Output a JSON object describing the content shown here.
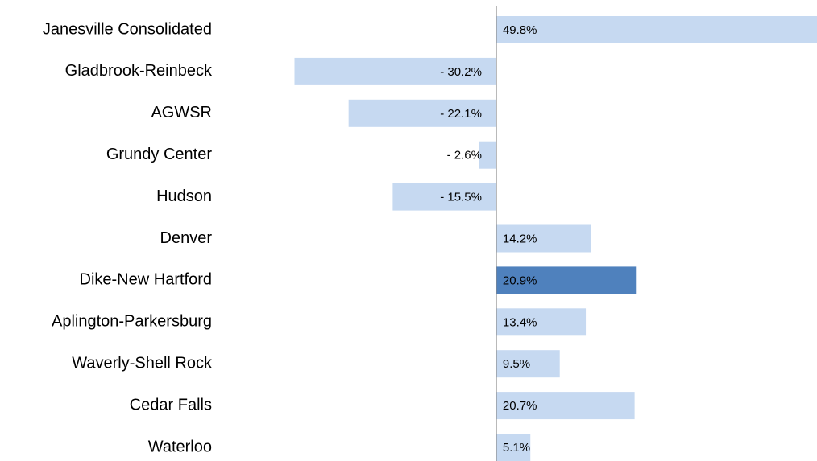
{
  "chart_data": {
    "type": "bar",
    "orientation": "horizontal",
    "categories": [
      "Janesville Consolidated",
      "Gladbrook-Reinbeck",
      "AGWSR",
      "Grundy Center",
      "Hudson",
      "Denver",
      "Dike-New Hartford",
      "Aplington-Parkersburg",
      "Waverly-Shell Rock",
      "Cedar Falls",
      "Waterloo"
    ],
    "values": [
      49.8,
      -30.2,
      -22.1,
      -2.6,
      -15.5,
      14.2,
      20.9,
      13.4,
      9.5,
      20.7,
      5.1
    ],
    "value_labels": [
      "49.8%",
      "- 30.2%",
      "- 22.1%",
      "- 2.6%",
      "- 15.5%",
      "14.2%",
      "20.9%",
      "13.4%",
      "9.5%",
      "20.7%",
      "5.1%"
    ],
    "colors": [
      "#c6d9f1",
      "#c6d9f1",
      "#c6d9f1",
      "#c6d9f1",
      "#c6d9f1",
      "#c6d9f1",
      "#4f81bd",
      "#c6d9f1",
      "#c6d9f1",
      "#c6d9f1",
      "#c6d9f1"
    ],
    "xlim": [
      -30.5,
      48
    ]
  }
}
